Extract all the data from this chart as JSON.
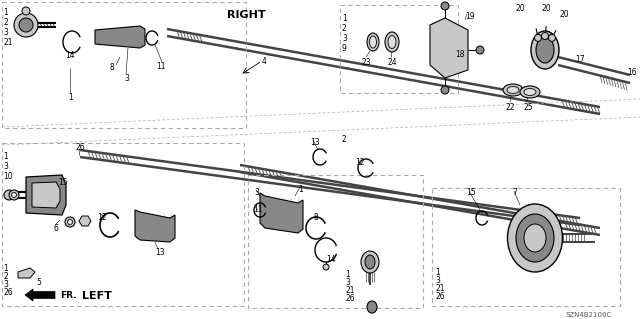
{
  "bg_color": "#f0f0f0",
  "part_num_text": "SZN4B2100C",
  "right_label": "RIGHT",
  "left_label": "LEFT",
  "fr_label": "FR.",
  "gray_light": "#c8c8c8",
  "gray_mid": "#888888",
  "gray_dark": "#444444",
  "black": "#000000",
  "white": "#ffffff",
  "dashed_color": "#aaaaaa",
  "line_color": "#222222"
}
